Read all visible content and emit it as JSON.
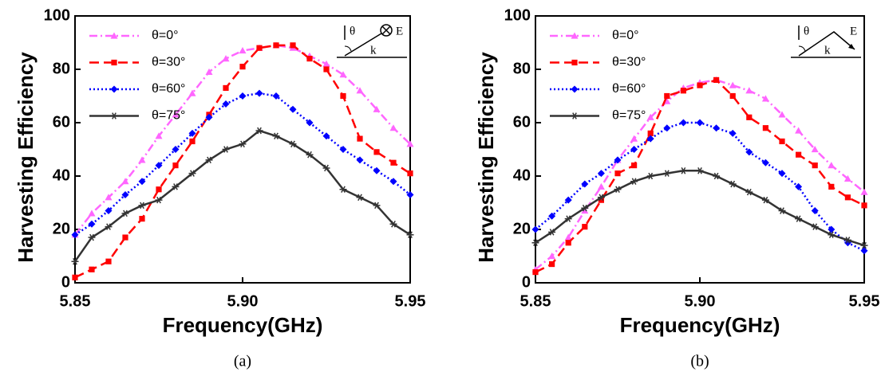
{
  "chart_data": [
    {
      "type": "line",
      "caption": "(a)",
      "xlabel": "Frequency(GHz)",
      "ylabel": "Harvesting Efficiency",
      "annotations": [
        "θ",
        "E",
        "k"
      ],
      "x": [
        5.85,
        5.855,
        5.86,
        5.865,
        5.87,
        5.875,
        5.88,
        5.885,
        5.89,
        5.895,
        5.9,
        5.905,
        5.91,
        5.915,
        5.92,
        5.925,
        5.93,
        5.935,
        5.94,
        5.945,
        5.95
      ],
      "xlim": [
        5.85,
        5.95
      ],
      "xticks": [
        5.85,
        {
          "value": 5.9,
          "label": "5.90"
        },
        5.95
      ],
      "ylim": [
        0,
        100
      ],
      "yticks": [
        0,
        20,
        40,
        60,
        80,
        100
      ],
      "legend": "upper left",
      "series": [
        {
          "name": "θ=0°",
          "color": "#ff66ff",
          "values": [
            18,
            26,
            32,
            38,
            46,
            55,
            63,
            71,
            79,
            84,
            87,
            88,
            89,
            88,
            85,
            82,
            78,
            72,
            65,
            58,
            52
          ]
        },
        {
          "name": "θ=30°",
          "color": "#ff0000",
          "values": [
            2,
            5,
            8,
            17,
            24,
            35,
            44,
            53,
            63,
            73,
            81,
            88,
            89,
            89,
            84,
            80,
            70,
            54,
            49,
            45,
            41
          ]
        },
        {
          "name": "θ=60°",
          "color": "#0000ff",
          "values": [
            18,
            22,
            27,
            33,
            38,
            44,
            50,
            56,
            62,
            67,
            70,
            71,
            70,
            65,
            60,
            55,
            50,
            46,
            42,
            38,
            33
          ]
        },
        {
          "name": "θ=75°",
          "color": "#333333",
          "values": [
            8,
            17,
            21,
            26,
            29,
            31,
            36,
            41,
            46,
            50,
            52,
            57,
            55,
            52,
            48,
            43,
            35,
            32,
            29,
            22,
            18
          ]
        }
      ]
    },
    {
      "type": "line",
      "caption": "(b)",
      "xlabel": "Frequency(GHz)",
      "ylabel": "Harvesting Efficiency",
      "annotations": [
        "θ",
        "E",
        "k"
      ],
      "x": [
        5.85,
        5.855,
        5.86,
        5.865,
        5.87,
        5.875,
        5.88,
        5.885,
        5.89,
        5.895,
        5.9,
        5.905,
        5.91,
        5.915,
        5.92,
        5.925,
        5.93,
        5.935,
        5.94,
        5.945,
        5.95
      ],
      "xlim": [
        5.85,
        5.95
      ],
      "xticks": [
        5.85,
        {
          "value": 5.9,
          "label": "5.90"
        },
        5.95
      ],
      "ylim": [
        0,
        100
      ],
      "yticks": [
        0,
        20,
        40,
        60,
        80,
        100
      ],
      "legend": "upper left",
      "series": [
        {
          "name": "θ=0°",
          "color": "#ff66ff",
          "values": [
            5,
            10,
            17,
            27,
            36,
            46,
            54,
            62,
            68,
            73,
            75,
            76,
            74,
            72,
            69,
            63,
            57,
            50,
            44,
            39,
            34
          ]
        },
        {
          "name": "θ=30°",
          "color": "#ff0000",
          "values": [
            4,
            7,
            15,
            21,
            31,
            41,
            44,
            56,
            70,
            72,
            74,
            76,
            70,
            62,
            58,
            53,
            48,
            44,
            36,
            32,
            29
          ]
        },
        {
          "name": "θ=60°",
          "color": "#0000ff",
          "values": [
            20,
            25,
            31,
            37,
            41,
            46,
            50,
            54,
            58,
            60,
            60,
            58,
            56,
            49,
            45,
            41,
            36,
            27,
            20,
            15,
            12
          ]
        },
        {
          "name": "θ=75°",
          "color": "#333333",
          "values": [
            15,
            19,
            24,
            28,
            32,
            35,
            38,
            40,
            41,
            42,
            42,
            40,
            37,
            34,
            31,
            27,
            24,
            21,
            18,
            16,
            14
          ]
        }
      ]
    }
  ]
}
